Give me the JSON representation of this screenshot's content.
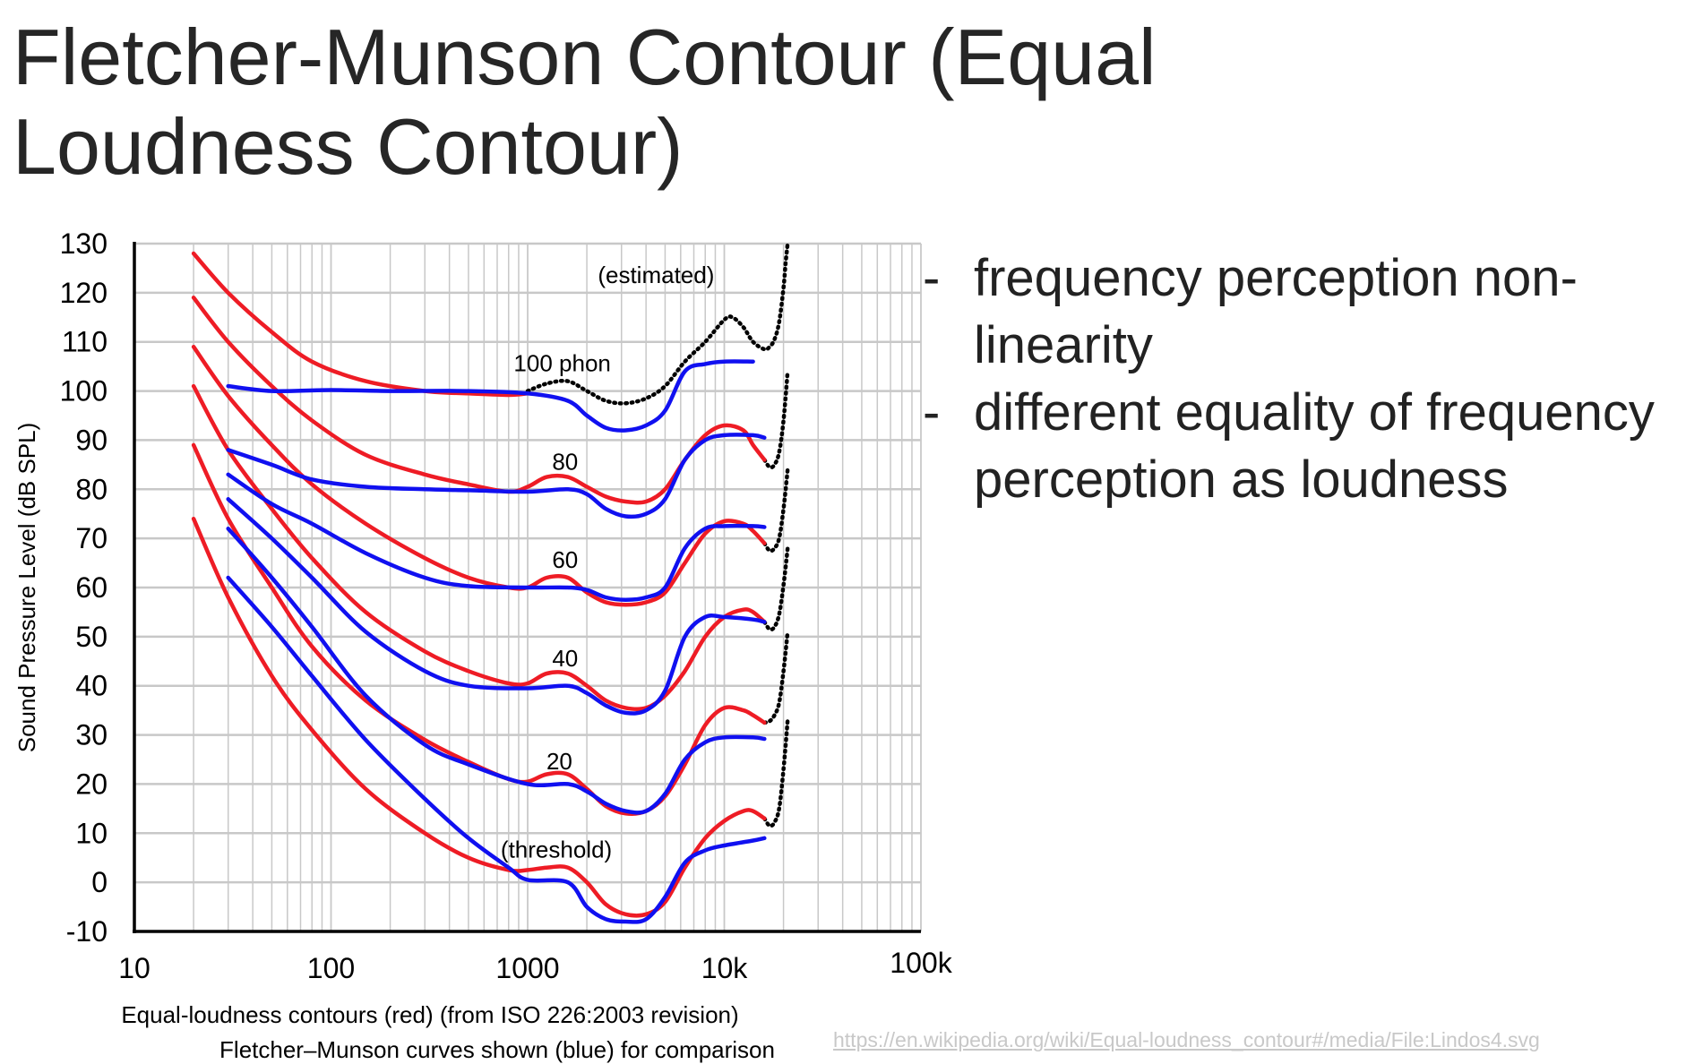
{
  "slide": {
    "title": "Fletcher-Munson Contour (Equal Loudness Contour)",
    "bullets": [
      "frequency perception non-linearity",
      "different equality of frequency perception as loudness"
    ],
    "bullet_marker": "-",
    "source_url": "https://en.wikipedia.org/wiki/Equal-loudness_contour#/media/File:Lindos4.svg"
  },
  "chart_data": {
    "type": "line",
    "title": "",
    "xlabel_lines": [
      "Equal-loudness contours (red) (from ISO 226:2003 revision)",
      "Fletcher–Munson curves shown (blue) for comparison"
    ],
    "ylabel": "Sound Pressure Level (dB SPL)",
    "x_scale": "log",
    "xlim": [
      10,
      100000
    ],
    "ylim": [
      -10,
      130
    ],
    "x_ticks": [
      {
        "value": 10,
        "label": "10"
      },
      {
        "value": 100,
        "label": "100"
      },
      {
        "value": 1000,
        "label": "1000"
      },
      {
        "value": 10000,
        "label": "10k"
      },
      {
        "value": 100000,
        "label": "100k"
      }
    ],
    "y_ticks": [
      -10,
      0,
      10,
      20,
      30,
      40,
      50,
      60,
      70,
      80,
      90,
      100,
      110,
      120,
      130
    ],
    "grid": true,
    "colors": {
      "red": "#ee1c25",
      "blue": "#1010f0",
      "dotted": "#000000",
      "grid": "#c8c8c8"
    },
    "annotations": [
      {
        "text": "(estimated)",
        "x": 4500,
        "y": 122
      },
      {
        "text": "100 phon",
        "x": 1500,
        "y": 104
      },
      {
        "text": "80",
        "x": 1550,
        "y": 84
      },
      {
        "text": "60",
        "x": 1550,
        "y": 64
      },
      {
        "text": "40",
        "x": 1550,
        "y": 44
      },
      {
        "text": "20",
        "x": 1450,
        "y": 23
      },
      {
        "text": "(threshold)",
        "x": 1400,
        "y": 5
      }
    ],
    "series_red": [
      {
        "phon": 100,
        "points": [
          [
            20,
            128
          ],
          [
            30,
            120
          ],
          [
            50,
            112
          ],
          [
            80,
            106
          ],
          [
            150,
            102
          ],
          [
            300,
            100
          ],
          [
            500,
            99.5
          ],
          [
            800,
            99.2
          ],
          [
            1000,
            99.5
          ]
        ]
      },
      {
        "phon": 80,
        "points": [
          [
            20,
            119
          ],
          [
            30,
            110
          ],
          [
            50,
            101
          ],
          [
            80,
            94
          ],
          [
            150,
            87
          ],
          [
            300,
            83
          ],
          [
            500,
            81
          ],
          [
            800,
            79.5
          ],
          [
            1000,
            80.5
          ],
          [
            1250,
            82.5
          ],
          [
            1600,
            82.5
          ],
          [
            2000,
            80.5
          ],
          [
            2500,
            78.5
          ],
          [
            3150,
            77.5
          ],
          [
            4000,
            77.5
          ],
          [
            5000,
            80
          ],
          [
            6300,
            86
          ],
          [
            8000,
            91
          ],
          [
            10000,
            93
          ],
          [
            12500,
            92
          ],
          [
            14000,
            89
          ],
          [
            16000,
            86
          ]
        ]
      },
      {
        "phon": 60,
        "points": [
          [
            20,
            109
          ],
          [
            30,
            99
          ],
          [
            50,
            89
          ],
          [
            80,
            81
          ],
          [
            150,
            73
          ],
          [
            300,
            66
          ],
          [
            500,
            62
          ],
          [
            800,
            60
          ],
          [
            1000,
            60
          ],
          [
            1250,
            62
          ],
          [
            1600,
            62
          ],
          [
            2000,
            59
          ],
          [
            2500,
            57
          ],
          [
            3150,
            56.5
          ],
          [
            4000,
            57
          ],
          [
            5000,
            59
          ],
          [
            6300,
            65
          ],
          [
            8000,
            71
          ],
          [
            10000,
            73.5
          ],
          [
            12500,
            73
          ],
          [
            14000,
            71.5
          ],
          [
            16000,
            69
          ]
        ]
      },
      {
        "phon": 40,
        "points": [
          [
            20,
            101
          ],
          [
            30,
            88
          ],
          [
            50,
            76
          ],
          [
            80,
            66
          ],
          [
            150,
            55
          ],
          [
            300,
            47
          ],
          [
            500,
            43
          ],
          [
            800,
            40.5
          ],
          [
            1000,
            40.5
          ],
          [
            1250,
            42.5
          ],
          [
            1600,
            42.5
          ],
          [
            2000,
            40
          ],
          [
            2500,
            37
          ],
          [
            3150,
            35.5
          ],
          [
            4000,
            35.5
          ],
          [
            5000,
            38
          ],
          [
            6300,
            43
          ],
          [
            8000,
            50
          ],
          [
            10000,
            54
          ],
          [
            12500,
            55.5
          ],
          [
            14000,
            55
          ],
          [
            16000,
            53
          ]
        ]
      },
      {
        "phon": 20,
        "points": [
          [
            20,
            89
          ],
          [
            30,
            74
          ],
          [
            50,
            60
          ],
          [
            80,
            48
          ],
          [
            150,
            37
          ],
          [
            300,
            29
          ],
          [
            500,
            24.5
          ],
          [
            800,
            21
          ],
          [
            1000,
            20.5
          ],
          [
            1250,
            22
          ],
          [
            1600,
            22
          ],
          [
            2000,
            19
          ],
          [
            2500,
            15.5
          ],
          [
            3150,
            14
          ],
          [
            4000,
            14.5
          ],
          [
            5000,
            17.5
          ],
          [
            6300,
            24
          ],
          [
            8000,
            32
          ],
          [
            10000,
            35.5
          ],
          [
            12500,
            35
          ],
          [
            14000,
            34
          ],
          [
            16000,
            32.5
          ]
        ]
      },
      {
        "phon": 0,
        "points": [
          [
            20,
            74
          ],
          [
            30,
            58
          ],
          [
            50,
            42
          ],
          [
            80,
            31
          ],
          [
            150,
            19
          ],
          [
            300,
            10
          ],
          [
            500,
            5
          ],
          [
            800,
            2.5
          ],
          [
            1000,
            2.5
          ],
          [
            1250,
            3
          ],
          [
            1600,
            3
          ],
          [
            2000,
            0
          ],
          [
            2500,
            -4.5
          ],
          [
            3150,
            -6.5
          ],
          [
            4000,
            -6.5
          ],
          [
            5000,
            -4
          ],
          [
            6300,
            3
          ],
          [
            8000,
            9
          ],
          [
            10000,
            12.5
          ],
          [
            12500,
            14.5
          ],
          [
            14000,
            14.5
          ],
          [
            16000,
            13
          ]
        ]
      }
    ],
    "series_blue": [
      {
        "phon": 100,
        "points": [
          [
            30,
            101
          ],
          [
            50,
            100
          ],
          [
            100,
            100.2
          ],
          [
            200,
            100
          ],
          [
            500,
            100
          ],
          [
            1000,
            99.5
          ],
          [
            1600,
            98
          ],
          [
            2000,
            95
          ],
          [
            2500,
            92.5
          ],
          [
            3150,
            92
          ],
          [
            4000,
            93
          ],
          [
            5000,
            96
          ],
          [
            6300,
            104
          ],
          [
            8000,
            105.5
          ],
          [
            10000,
            106
          ],
          [
            14000,
            106
          ]
        ]
      },
      {
        "phon": 80,
        "points": [
          [
            30,
            88
          ],
          [
            50,
            85
          ],
          [
            80,
            82
          ],
          [
            150,
            80.5
          ],
          [
            300,
            80
          ],
          [
            500,
            79.8
          ],
          [
            1000,
            79.5
          ],
          [
            1600,
            80
          ],
          [
            2000,
            79
          ],
          [
            2500,
            76
          ],
          [
            3150,
            74.5
          ],
          [
            4000,
            75
          ],
          [
            5000,
            78
          ],
          [
            6300,
            86
          ],
          [
            8000,
            90
          ],
          [
            10000,
            91
          ],
          [
            14000,
            91
          ],
          [
            16000,
            90.5
          ]
        ]
      },
      {
        "phon": 60,
        "points": [
          [
            30,
            83
          ],
          [
            50,
            77
          ],
          [
            80,
            73
          ],
          [
            150,
            67
          ],
          [
            300,
            62
          ],
          [
            500,
            60.3
          ],
          [
            1000,
            60
          ],
          [
            1600,
            60
          ],
          [
            2000,
            59.5
          ],
          [
            2500,
            58
          ],
          [
            3150,
            57.5
          ],
          [
            4000,
            58
          ],
          [
            5000,
            60
          ],
          [
            6300,
            68
          ],
          [
            8000,
            72
          ],
          [
            10000,
            72.5
          ],
          [
            14000,
            72.5
          ],
          [
            16000,
            72.3
          ]
        ]
      },
      {
        "phon": 40,
        "points": [
          [
            30,
            78
          ],
          [
            50,
            70
          ],
          [
            80,
            62
          ],
          [
            150,
            51
          ],
          [
            300,
            43
          ],
          [
            500,
            40
          ],
          [
            1000,
            39.5
          ],
          [
            1600,
            40
          ],
          [
            2000,
            38.5
          ],
          [
            2500,
            36
          ],
          [
            3150,
            34.5
          ],
          [
            4000,
            35
          ],
          [
            5000,
            39
          ],
          [
            6300,
            50
          ],
          [
            8000,
            54
          ],
          [
            10000,
            54
          ],
          [
            14000,
            53.5
          ],
          [
            16000,
            53
          ]
        ]
      },
      {
        "phon": 20,
        "points": [
          [
            30,
            72
          ],
          [
            50,
            62
          ],
          [
            80,
            52
          ],
          [
            150,
            38
          ],
          [
            300,
            28
          ],
          [
            500,
            24
          ],
          [
            1000,
            20
          ],
          [
            1600,
            20
          ],
          [
            2000,
            18.5
          ],
          [
            2500,
            16
          ],
          [
            3150,
            14.5
          ],
          [
            4000,
            14.5
          ],
          [
            5000,
            18
          ],
          [
            6300,
            25
          ],
          [
            8000,
            28.5
          ],
          [
            10000,
            29.5
          ],
          [
            14000,
            29.5
          ],
          [
            16000,
            29.2
          ]
        ]
      },
      {
        "phon": 0,
        "points": [
          [
            30,
            62
          ],
          [
            50,
            52
          ],
          [
            80,
            42
          ],
          [
            150,
            29
          ],
          [
            300,
            17
          ],
          [
            500,
            9
          ],
          [
            800,
            3
          ],
          [
            1000,
            0.5
          ],
          [
            1600,
            0
          ],
          [
            2000,
            -5
          ],
          [
            2500,
            -7.5
          ],
          [
            3150,
            -8
          ],
          [
            4000,
            -7.5
          ],
          [
            5000,
            -3
          ],
          [
            6300,
            4
          ],
          [
            8000,
            6.5
          ],
          [
            10000,
            7.5
          ],
          [
            14000,
            8.5
          ],
          [
            16000,
            9
          ]
        ]
      }
    ],
    "series_dotted": [
      {
        "points": [
          [
            1000,
            100
          ],
          [
            1250,
            101.5
          ],
          [
            1600,
            102
          ],
          [
            2000,
            100
          ],
          [
            2500,
            98
          ],
          [
            3150,
            97.5
          ],
          [
            4000,
            98.5
          ],
          [
            5000,
            101
          ],
          [
            6300,
            106
          ],
          [
            8000,
            110
          ],
          [
            10000,
            114.5
          ],
          [
            11000,
            115
          ],
          [
            12500,
            113
          ],
          [
            14000,
            110
          ],
          [
            16000,
            108.5
          ],
          [
            17000,
            109
          ],
          [
            18000,
            110.5
          ],
          [
            19000,
            114
          ],
          [
            20000,
            121
          ],
          [
            20500,
            126
          ],
          [
            21000,
            130
          ]
        ]
      },
      {
        "points": [
          [
            16000,
            86
          ],
          [
            17000,
            84.5
          ],
          [
            18000,
            85
          ],
          [
            19000,
            87.5
          ],
          [
            20000,
            94
          ],
          [
            21000,
            104
          ]
        ]
      },
      {
        "points": [
          [
            16000,
            69
          ],
          [
            17000,
            67.5
          ],
          [
            18000,
            68
          ],
          [
            19000,
            70
          ],
          [
            20000,
            76
          ],
          [
            21000,
            84
          ]
        ]
      },
      {
        "points": [
          [
            16000,
            53
          ],
          [
            17000,
            51.5
          ],
          [
            18000,
            52
          ],
          [
            19000,
            54.5
          ],
          [
            20000,
            60.5
          ],
          [
            21000,
            68
          ]
        ]
      },
      {
        "points": [
          [
            16000,
            32.5
          ],
          [
            17000,
            32.8
          ],
          [
            18000,
            34
          ],
          [
            19000,
            36.5
          ],
          [
            20000,
            43
          ],
          [
            21000,
            51
          ]
        ]
      },
      {
        "points": [
          [
            16000,
            13
          ],
          [
            17000,
            11.5
          ],
          [
            18000,
            12.2
          ],
          [
            19000,
            15
          ],
          [
            20000,
            23
          ],
          [
            21000,
            33
          ]
        ]
      }
    ]
  }
}
